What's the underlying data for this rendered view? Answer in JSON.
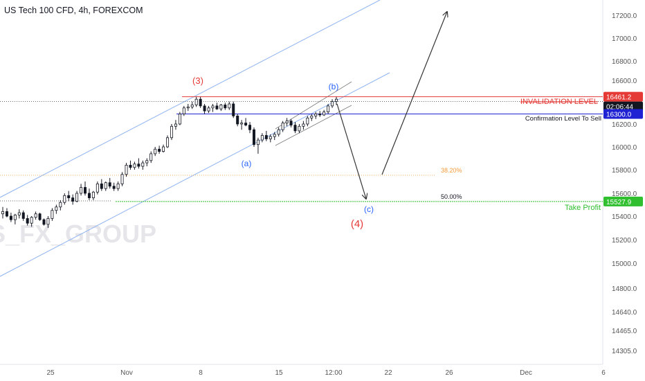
{
  "header": {
    "title": "US Tech 100 CFD, 4h, FOREXCOM"
  },
  "watermark": "S_FX_GROUP",
  "colors": {
    "candle": "#131722",
    "channel": "#8fb3f0",
    "red": "#e53935",
    "blue": "#1e22d2",
    "green": "#2fbf2f",
    "orange": "#f59a3a",
    "wave_blue": "#2962ff",
    "axis_text": "#555555",
    "price_tag_blue": "#1e22d2",
    "price_tag_green": "#2fbf2f",
    "price_tag_red": "#e53935",
    "price_tag_dark": "#131722"
  },
  "chart_data": {
    "type": "candlestick",
    "title": "US Tech 100 CFD, 4h, FOREXCOM",
    "y_axis": {
      "ticks": [
        "17200.0",
        "17000.0",
        "16800.0",
        "16600.0",
        "16400.0",
        "16200.0",
        "16000.0",
        "15800.0",
        "15600.0",
        "15400.0",
        "15200.0",
        "15000.0",
        "14800.0",
        "14640.0",
        "14465.0",
        "14305.0"
      ]
    },
    "x_axis": {
      "ticks": [
        "25",
        "Nov",
        "8",
        "15",
        "12:00",
        "22",
        "26",
        "Dec",
        "6"
      ]
    },
    "price_tags": {
      "invalidation": "16461.2",
      "current_time": "02:06:44",
      "confirmation": "16300.0",
      "take_profit": "15527.9"
    },
    "levels": {
      "invalidation_label": "INVALIDATION LEVEL",
      "confirmation_label": "Confirmation Level To Sell",
      "take_profit_label": "Take Profit",
      "fib_382": "38.20%",
      "fib_50": "50.00%"
    },
    "wave_labels": {
      "w3": "(3)",
      "wa": "(a)",
      "wb": "(b)",
      "wc": "(c)",
      "w4": "(4)"
    },
    "candles_ohlc": [
      [
        15420,
        15480,
        15380,
        15440
      ],
      [
        15440,
        15470,
        15390,
        15400
      ],
      [
        15400,
        15430,
        15350,
        15370
      ],
      [
        15370,
        15420,
        15330,
        15410
      ],
      [
        15410,
        15460,
        15380,
        15430
      ],
      [
        15430,
        15450,
        15360,
        15380
      ],
      [
        15380,
        15410,
        15320,
        15340
      ],
      [
        15340,
        15400,
        15310,
        15390
      ],
      [
        15390,
        15440,
        15370,
        15420
      ],
      [
        15420,
        15430,
        15360,
        15370
      ],
      [
        15370,
        15380,
        15320,
        15330
      ],
      [
        15330,
        15400,
        15300,
        15380
      ],
      [
        15380,
        15470,
        15360,
        15450
      ],
      [
        15450,
        15500,
        15420,
        15480
      ],
      [
        15480,
        15540,
        15450,
        15520
      ],
      [
        15520,
        15600,
        15500,
        15580
      ],
      [
        15580,
        15620,
        15530,
        15560
      ],
      [
        15560,
        15590,
        15500,
        15530
      ],
      [
        15530,
        15620,
        15520,
        15600
      ],
      [
        15600,
        15680,
        15580,
        15650
      ],
      [
        15650,
        15700,
        15580,
        15600
      ],
      [
        15600,
        15640,
        15540,
        15560
      ],
      [
        15560,
        15620,
        15540,
        15610
      ],
      [
        15610,
        15700,
        15590,
        15680
      ],
      [
        15680,
        15720,
        15620,
        15640
      ],
      [
        15640,
        15700,
        15620,
        15690
      ],
      [
        15690,
        15730,
        15640,
        15660
      ],
      [
        15660,
        15690,
        15620,
        15640
      ],
      [
        15640,
        15700,
        15620,
        15680
      ],
      [
        15680,
        15780,
        15660,
        15760
      ],
      [
        15760,
        15860,
        15740,
        15840
      ],
      [
        15840,
        15880,
        15800,
        15820
      ],
      [
        15820,
        15870,
        15800,
        15850
      ],
      [
        15850,
        15900,
        15810,
        15830
      ],
      [
        15830,
        15880,
        15800,
        15860
      ],
      [
        15860,
        15900,
        15830,
        15880
      ],
      [
        15880,
        15960,
        15860,
        15940
      ],
      [
        15940,
        16000,
        15920,
        15980
      ],
      [
        15980,
        16010,
        15940,
        15960
      ],
      [
        15960,
        16020,
        15950,
        16000
      ],
      [
        16000,
        16100,
        15990,
        16080
      ],
      [
        16080,
        16200,
        16060,
        16180
      ],
      [
        16180,
        16240,
        16150,
        16200
      ],
      [
        16200,
        16320,
        16190,
        16300
      ],
      [
        16300,
        16380,
        16280,
        16360
      ],
      [
        16360,
        16400,
        16330,
        16370
      ],
      [
        16370,
        16420,
        16350,
        16390
      ],
      [
        16390,
        16460,
        16370,
        16440
      ],
      [
        16440,
        16460,
        16360,
        16380
      ],
      [
        16380,
        16400,
        16300,
        16330
      ],
      [
        16330,
        16380,
        16310,
        16360
      ],
      [
        16360,
        16400,
        16320,
        16380
      ],
      [
        16380,
        16410,
        16340,
        16350
      ],
      [
        16350,
        16400,
        16330,
        16390
      ],
      [
        16390,
        16410,
        16340,
        16360
      ],
      [
        16360,
        16420,
        16340,
        16400
      ],
      [
        16400,
        16420,
        16260,
        16280
      ],
      [
        16280,
        16300,
        16180,
        16200
      ],
      [
        16200,
        16240,
        16150,
        16210
      ],
      [
        16210,
        16260,
        16180,
        16190
      ],
      [
        16190,
        16220,
        16120,
        16150
      ],
      [
        16150,
        16170,
        16000,
        16020
      ],
      [
        16020,
        16080,
        15940,
        16060
      ],
      [
        16060,
        16120,
        16040,
        16100
      ],
      [
        16100,
        16140,
        16050,
        16070
      ],
      [
        16070,
        16110,
        16040,
        16090
      ],
      [
        16090,
        16130,
        16060,
        16110
      ],
      [
        16110,
        16170,
        16090,
        16150
      ],
      [
        16150,
        16230,
        16130,
        16210
      ],
      [
        16210,
        16260,
        16180,
        16230
      ],
      [
        16230,
        16250,
        16170,
        16190
      ],
      [
        16190,
        16220,
        16120,
        16140
      ],
      [
        16140,
        16200,
        16120,
        16180
      ],
      [
        16180,
        16230,
        16150,
        16200
      ],
      [
        16200,
        16280,
        16180,
        16260
      ],
      [
        16260,
        16300,
        16230,
        16280
      ],
      [
        16280,
        16320,
        16250,
        16300
      ],
      [
        16300,
        16330,
        16270,
        16290
      ],
      [
        16290,
        16340,
        16280,
        16320
      ],
      [
        16320,
        16400,
        16300,
        16380
      ],
      [
        16380,
        16440,
        16360,
        16420
      ],
      [
        16420,
        16460,
        16390,
        16440
      ]
    ]
  }
}
